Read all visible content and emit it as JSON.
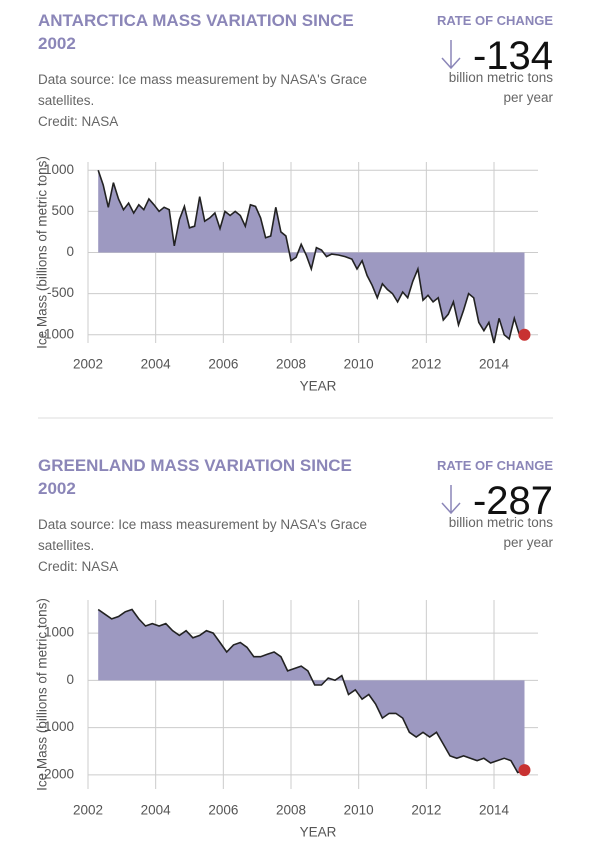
{
  "chart_data": [
    {
      "type": "area",
      "title": "ANTARCTICA MASS VARIATION SINCE 2002",
      "source": "Data source: Ice mass measurement by NASA's Grace satellites.",
      "credit": "Credit: NASA",
      "rate_label": "RATE OF CHANGE",
      "rate_value": -134,
      "rate_unit": "billion metric tons per year",
      "xlabel": "YEAR",
      "ylabel": "Ice Mass (billions of metric tons)",
      "color": "#9d99c1",
      "line_color": "#222222",
      "marker_color": "#c83232",
      "grid": true,
      "xlim": [
        2002,
        2015.3
      ],
      "xticks": [
        2002,
        2004,
        2006,
        2008,
        2010,
        2012,
        2014
      ],
      "ylim": [
        -1100,
        1100
      ],
      "yticks": [
        -1000,
        -500,
        0,
        500,
        1000
      ],
      "x": [
        2002.3,
        2002.45,
        2002.6,
        2002.75,
        2002.9,
        2003.05,
        2003.2,
        2003.35,
        2003.5,
        2003.65,
        2003.8,
        2003.95,
        2004.1,
        2004.25,
        2004.4,
        2004.55,
        2004.7,
        2004.85,
        2005.0,
        2005.15,
        2005.3,
        2005.45,
        2005.6,
        2005.75,
        2005.9,
        2006.05,
        2006.2,
        2006.35,
        2006.5,
        2006.65,
        2006.8,
        2006.95,
        2007.1,
        2007.25,
        2007.4,
        2007.55,
        2007.7,
        2007.85,
        2008.0,
        2008.15,
        2008.3,
        2008.45,
        2008.6,
        2008.75,
        2008.9,
        2009.05,
        2009.2,
        2009.4,
        2009.6,
        2009.8,
        2009.95,
        2010.1,
        2010.25,
        2010.4,
        2010.55,
        2010.7,
        2010.85,
        2011.0,
        2011.15,
        2011.3,
        2011.45,
        2011.6,
        2011.75,
        2011.9,
        2012.05,
        2012.2,
        2012.35,
        2012.5,
        2012.65,
        2012.8,
        2012.95,
        2013.1,
        2013.25,
        2013.4,
        2013.55,
        2013.7,
        2013.85,
        2014.0,
        2014.15,
        2014.3,
        2014.45,
        2014.6,
        2014.75,
        2014.9
      ],
      "values": [
        1000,
        820,
        550,
        850,
        650,
        520,
        600,
        480,
        580,
        520,
        650,
        580,
        500,
        550,
        520,
        80,
        400,
        560,
        300,
        320,
        680,
        380,
        420,
        480,
        290,
        500,
        450,
        500,
        450,
        320,
        580,
        560,
        420,
        180,
        200,
        550,
        250,
        200,
        -100,
        -60,
        100,
        -30,
        -200,
        60,
        30,
        -50,
        -20,
        -30,
        -50,
        -80,
        -200,
        -100,
        -280,
        -400,
        -550,
        -380,
        -450,
        -500,
        -600,
        -480,
        -550,
        -350,
        -200,
        -580,
        -520,
        -600,
        -550,
        -820,
        -750,
        -600,
        -880,
        -700,
        -500,
        -550,
        -850,
        -950,
        -850,
        -1100,
        -800,
        -1000,
        -1050,
        -800,
        -1000,
        -1000
      ]
    },
    {
      "type": "area",
      "title": "GREENLAND MASS VARIATION SINCE 2002",
      "source": "Data source: Ice mass measurement by NASA's Grace satellites.",
      "credit": "Credit: NASA",
      "rate_label": "RATE OF CHANGE",
      "rate_value": -287,
      "rate_unit": "billion metric tons per year",
      "xlabel": "YEAR",
      "ylabel": "Ice Mass (billions of metric tons)",
      "color": "#9d99c1",
      "line_color": "#222222",
      "marker_color": "#c83232",
      "grid": true,
      "xlim": [
        2002,
        2015.3
      ],
      "xticks": [
        2002,
        2004,
        2006,
        2008,
        2010,
        2012,
        2014
      ],
      "ylim": [
        -2300,
        1700
      ],
      "yticks": [
        -2000,
        -1000,
        0,
        1000
      ],
      "x": [
        2002.3,
        2002.5,
        2002.7,
        2002.9,
        2003.1,
        2003.3,
        2003.5,
        2003.7,
        2003.9,
        2004.1,
        2004.3,
        2004.5,
        2004.7,
        2004.9,
        2005.1,
        2005.3,
        2005.5,
        2005.7,
        2005.9,
        2006.1,
        2006.3,
        2006.5,
        2006.7,
        2006.9,
        2007.1,
        2007.3,
        2007.5,
        2007.7,
        2007.9,
        2008.1,
        2008.3,
        2008.5,
        2008.7,
        2008.9,
        2009.1,
        2009.3,
        2009.5,
        2009.7,
        2009.9,
        2010.1,
        2010.3,
        2010.5,
        2010.7,
        2010.9,
        2011.1,
        2011.3,
        2011.5,
        2011.7,
        2011.9,
        2012.1,
        2012.3,
        2012.5,
        2012.7,
        2012.9,
        2013.1,
        2013.3,
        2013.5,
        2013.7,
        2013.9,
        2014.1,
        2014.3,
        2014.5,
        2014.7,
        2014.9
      ],
      "values": [
        1500,
        1400,
        1300,
        1350,
        1450,
        1500,
        1300,
        1150,
        1200,
        1150,
        1200,
        1050,
        950,
        1050,
        900,
        950,
        1050,
        1000,
        800,
        600,
        750,
        800,
        700,
        500,
        500,
        550,
        600,
        500,
        200,
        250,
        300,
        200,
        -100,
        -100,
        50,
        0,
        100,
        -300,
        -200,
        -400,
        -300,
        -500,
        -800,
        -700,
        -700,
        -800,
        -1100,
        -1200,
        -1100,
        -1200,
        -1100,
        -1350,
        -1600,
        -1650,
        -1600,
        -1650,
        -1700,
        -1650,
        -1750,
        -1700,
        -1650,
        -1700,
        -1950,
        -1900
      ]
    }
  ]
}
